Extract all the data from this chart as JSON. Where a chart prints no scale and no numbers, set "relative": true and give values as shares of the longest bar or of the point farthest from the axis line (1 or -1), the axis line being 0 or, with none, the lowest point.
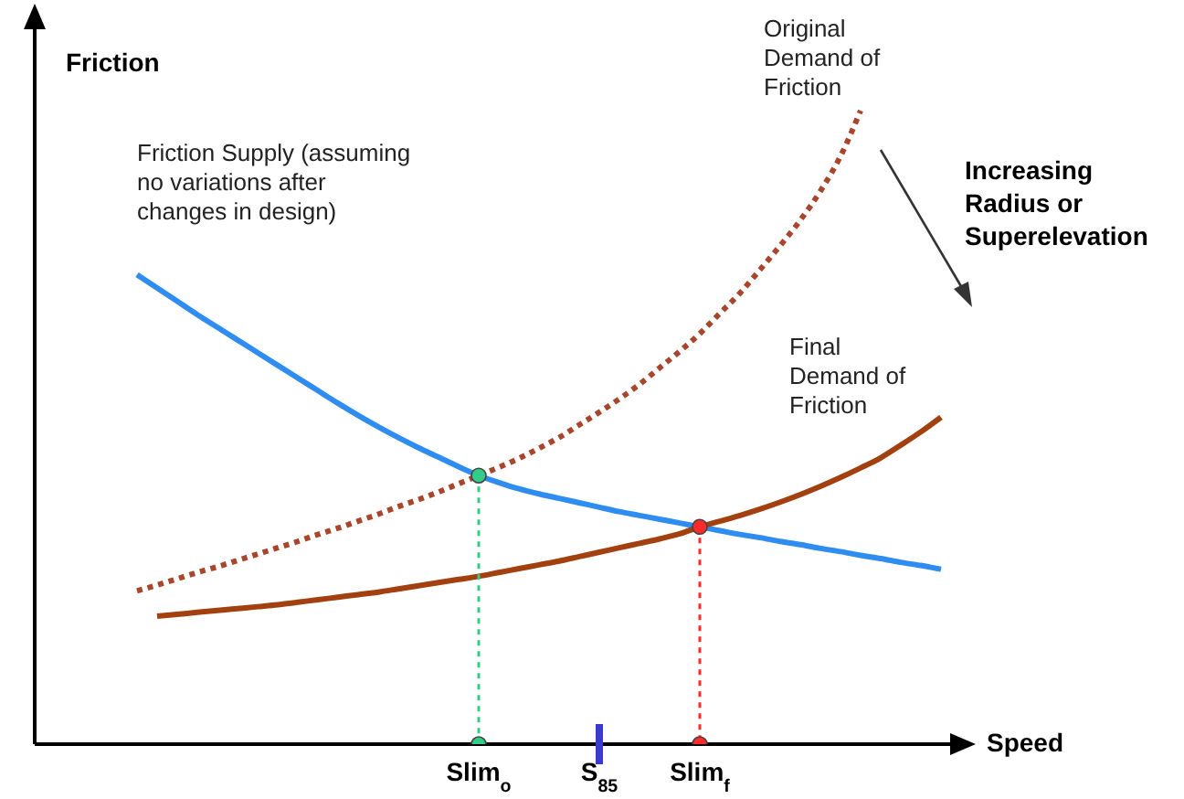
{
  "chart_data": {
    "type": "line",
    "xlabel": "Speed",
    "ylabel": "Friction",
    "relative": true,
    "annotations": [
      "Increasing Radius or Superelevation"
    ],
    "categories": [
      null,
      null,
      null,
      null,
      null,
      null,
      null,
      null,
      null,
      null,
      null,
      null,
      null,
      null,
      null,
      null,
      null,
      "Slim$_{o}$",
      null,
      null,
      null,
      null,
      null,
      "S$_{85}$",
      null,
      null,
      null,
      null,
      "Slim$_{f}$",
      null,
      null,
      null,
      null,
      null,
      null,
      null,
      null,
      null,
      null,
      null,
      null
    ],
    "series": [
      {
        "name": "Friction Supply (assuming no variations after changes in design)",
        "color": "#2f8cf0",
        "line_style": "solid",
        "values": [
          0.741,
          0.72,
          0.699,
          0.678,
          0.658,
          0.638,
          0.618,
          0.598,
          0.578,
          0.558,
          0.538,
          0.519,
          0.501,
          0.484,
          0.468,
          0.453,
          0.438,
          0.424,
          0.413,
          0.403,
          0.395,
          0.388,
          0.381,
          0.374,
          0.367,
          0.361,
          0.355,
          0.349,
          0.343,
          0.337,
          0.331,
          0.326,
          0.32,
          0.315,
          0.309,
          0.304,
          0.298,
          0.293,
          0.287,
          0.282,
          0.276
        ]
      },
      {
        "name": "Original Demand of Friction",
        "color": "#a8452a",
        "line_style": "dotted",
        "values": [
          0.242,
          0.251,
          0.261,
          0.271,
          0.28,
          0.29,
          0.3,
          0.31,
          0.32,
          0.331,
          0.341,
          0.352,
          0.363,
          0.375,
          0.386,
          0.398,
          0.411,
          0.424,
          0.437,
          0.451,
          0.467,
          0.484,
          0.504,
          0.524,
          0.545,
          0.568,
          0.594,
          0.62,
          0.648,
          0.68,
          0.712,
          0.749,
          0.787,
          0.827,
          0.873,
          0.928,
          1,
          null,
          null,
          null,
          null
        ]
      },
      {
        "name": "Final Demand of Friction",
        "color": "#a3400f",
        "line_style": "solid",
        "values": [
          null,
          0.202,
          0.205,
          0.208,
          0.211,
          0.214,
          0.217,
          0.22,
          0.224,
          0.228,
          0.232,
          0.236,
          0.24,
          0.245,
          0.25,
          0.255,
          0.26,
          0.265,
          0.271,
          0.277,
          0.283,
          0.289,
          0.296,
          0.303,
          0.31,
          0.317,
          0.324,
          0.332,
          0.343,
          0.352,
          0.361,
          0.371,
          0.382,
          0.394,
          0.407,
          0.421,
          0.436,
          0.452,
          0.472,
          0.493,
          0.516
        ]
      },
      {
        "type": "line",
        "marker": "circle",
        "line_style": "dotted",
        "color": "#33cc88",
        "x": [
          "Slim$_{o}$",
          "Slim$_{o}$"
        ],
        "values": [
          0.424,
          0
        ]
      },
      {
        "type": "line",
        "marker": "circle",
        "line_style": "dotted",
        "color": "#ff2a2a",
        "x": [
          "Slim$_{f}$",
          "Slim$_{f}$"
        ],
        "values": [
          0.343,
          0
        ]
      }
    ]
  }
}
